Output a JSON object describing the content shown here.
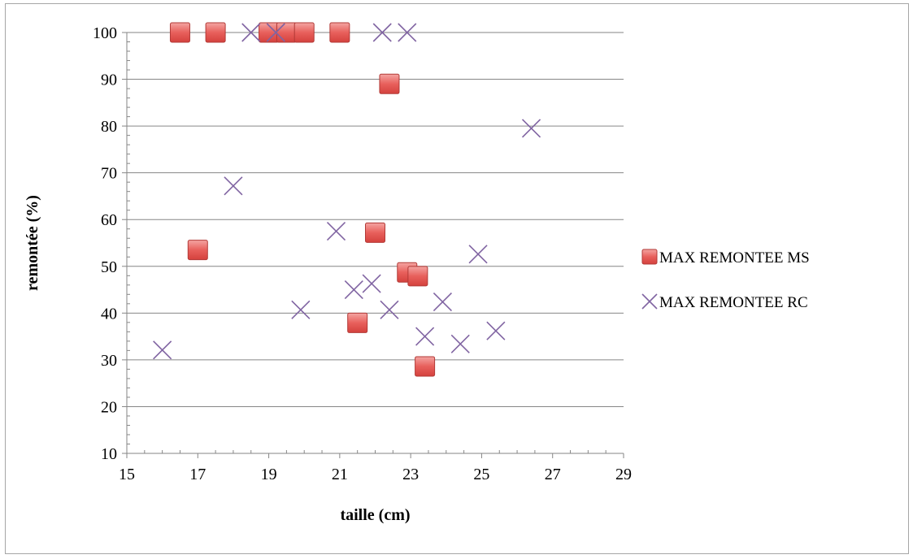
{
  "chart_data": {
    "type": "scatter",
    "title": "",
    "xlabel": "taille (cm)",
    "ylabel": "remontée (%)",
    "xlim": [
      15,
      29
    ],
    "ylim": [
      10,
      100
    ],
    "x_ticks": [
      15,
      17,
      19,
      21,
      23,
      25,
      27,
      29
    ],
    "y_ticks": [
      10,
      20,
      30,
      40,
      50,
      60,
      70,
      80,
      90,
      100
    ],
    "grid": "horizontal major",
    "legend_position": "right",
    "series": [
      {
        "name": "MAX REMONTEE MS",
        "marker": "square",
        "color": "#e8605c",
        "points": [
          {
            "x": 16.5,
            "y": 100
          },
          {
            "x": 17.5,
            "y": 100
          },
          {
            "x": 19.0,
            "y": 100
          },
          {
            "x": 19.5,
            "y": 100
          },
          {
            "x": 20.0,
            "y": 100
          },
          {
            "x": 21.0,
            "y": 100
          },
          {
            "x": 22.4,
            "y": 89
          },
          {
            "x": 17.0,
            "y": 53.5
          },
          {
            "x": 22.0,
            "y": 57.2
          },
          {
            "x": 22.9,
            "y": 48.7
          },
          {
            "x": 23.2,
            "y": 47.9
          },
          {
            "x": 21.5,
            "y": 37.9
          },
          {
            "x": 23.4,
            "y": 28.6
          }
        ]
      },
      {
        "name": "MAX REMONTEE RC",
        "marker": "x",
        "color": "#8064a2",
        "points": [
          {
            "x": 18.5,
            "y": 100
          },
          {
            "x": 19.2,
            "y": 100
          },
          {
            "x": 22.2,
            "y": 100
          },
          {
            "x": 22.9,
            "y": 100
          },
          {
            "x": 26.4,
            "y": 79.5
          },
          {
            "x": 18.0,
            "y": 67.2
          },
          {
            "x": 20.9,
            "y": 57.5
          },
          {
            "x": 24.9,
            "y": 52.6
          },
          {
            "x": 21.9,
            "y": 46.3
          },
          {
            "x": 21.4,
            "y": 45.0
          },
          {
            "x": 23.9,
            "y": 42.4
          },
          {
            "x": 19.9,
            "y": 40.7
          },
          {
            "x": 22.4,
            "y": 40.7
          },
          {
            "x": 25.4,
            "y": 36.2
          },
          {
            "x": 23.4,
            "y": 35.0
          },
          {
            "x": 24.4,
            "y": 33.4
          },
          {
            "x": 16.0,
            "y": 32.1
          }
        ]
      }
    ]
  }
}
